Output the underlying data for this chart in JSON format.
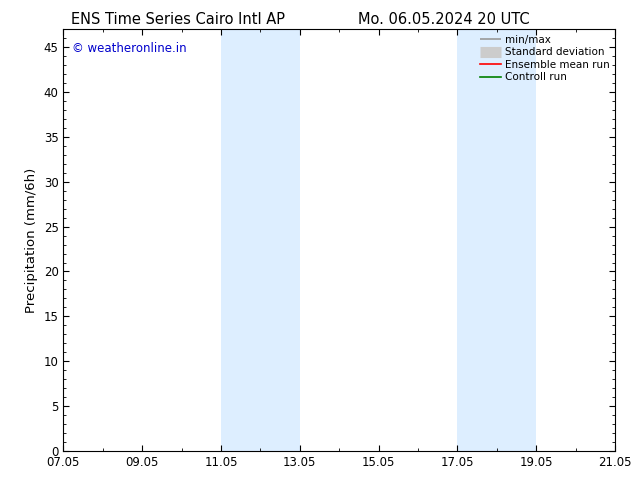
{
  "title_left": "ENS Time Series Cairo Intl AP",
  "title_right": "Mo. 06.05.2024 20 UTC",
  "ylabel": "Precipitation (mm/6h)",
  "xlabel_ticks": [
    "07.05",
    "09.05",
    "11.05",
    "13.05",
    "15.05",
    "17.05",
    "19.05",
    "21.05"
  ],
  "xlim": [
    0,
    7
  ],
  "ylim": [
    0,
    47
  ],
  "yticks": [
    0,
    5,
    10,
    15,
    20,
    25,
    30,
    35,
    40,
    45
  ],
  "shaded_regions": [
    {
      "x_start": 2.0,
      "x_end": 3.0,
      "color": "#ddeeff"
    },
    {
      "x_start": 5.0,
      "x_end": 6.0,
      "color": "#ddeeff"
    }
  ],
  "watermark_text": "© weatheronline.in",
  "watermark_color": "#0000cc",
  "legend_entries": [
    {
      "label": "min/max",
      "color": "#999999",
      "lw": 1.2
    },
    {
      "label": "Standard deviation",
      "color": "#cccccc",
      "lw": 6
    },
    {
      "label": "Ensemble mean run",
      "color": "#ff0000",
      "lw": 1.2
    },
    {
      "label": "Controll run",
      "color": "#008000",
      "lw": 1.2
    }
  ],
  "background_color": "#ffffff",
  "axes_background": "#ffffff",
  "tick_label_fontsize": 8.5,
  "axis_label_fontsize": 9.5,
  "title_fontsize": 10.5
}
